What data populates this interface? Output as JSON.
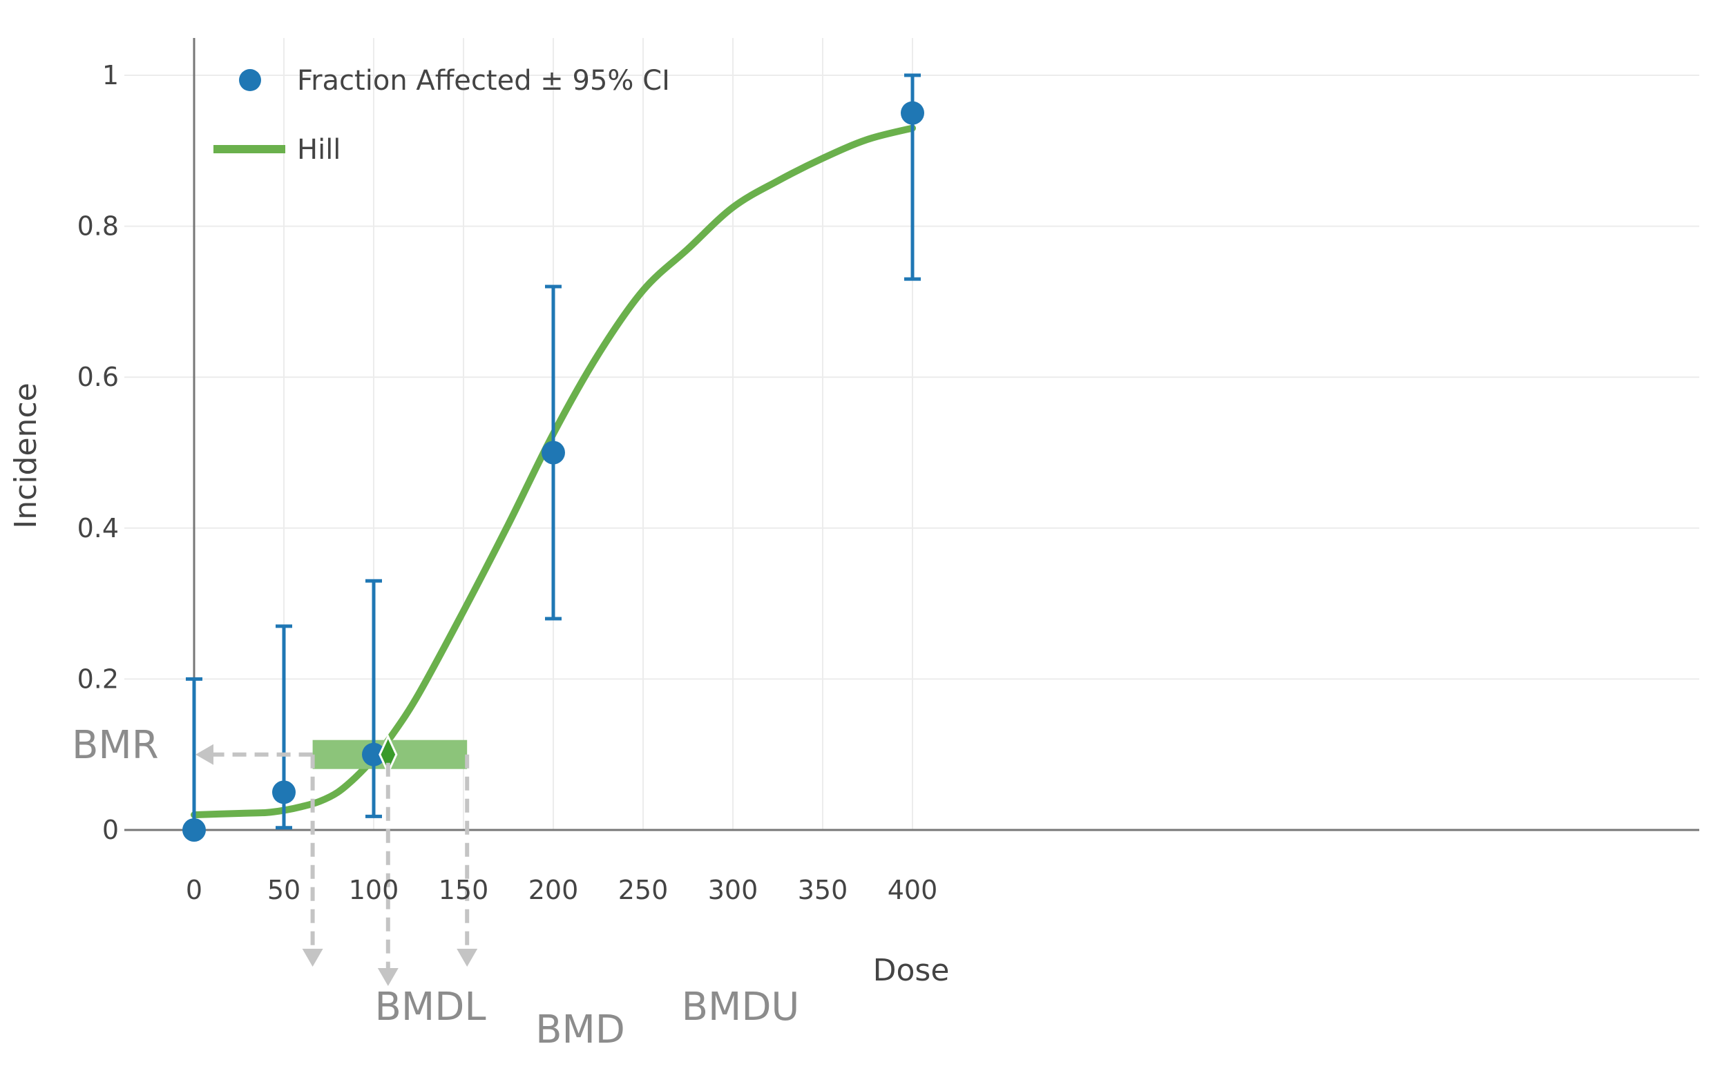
{
  "colors": {
    "points": "#1f77b4",
    "curve": "#6ab04c",
    "bmd_band": "#8cc47a",
    "bmd_marker": "#3a9a2a",
    "annotation": "#c4c4c4",
    "annotation_text": "#8c8c8c",
    "grid": "#ececec",
    "axis": "#777777"
  },
  "chart_data": {
    "type": "scatter",
    "title": "",
    "xlabel": "Dose",
    "ylabel": "Incidence",
    "xlim": [
      0,
      420
    ],
    "ylim": [
      0,
      1.05
    ],
    "x_ticks": [
      0,
      50,
      100,
      150,
      200,
      250,
      300,
      350,
      400
    ],
    "x_tick_labels": [
      "0",
      "50",
      "100",
      "150",
      "200",
      "250",
      "300",
      "350",
      "400"
    ],
    "y_ticks": [
      0,
      0.2,
      0.4,
      0.6,
      0.8,
      1
    ],
    "y_tick_labels": [
      "0",
      "0.2",
      "0.4",
      "0.6",
      "0.8",
      "1"
    ],
    "grid": true,
    "legend_position": "top-left",
    "series": [
      {
        "name": "Fraction Affected ± 95% CI",
        "kind": "points_with_error_bars",
        "x": [
          0,
          50,
          100,
          200,
          400
        ],
        "y": [
          0,
          0.05,
          0.1,
          0.5,
          0.95
        ],
        "ci_low": [
          0,
          0.003,
          0.018,
          0.28,
          0.73
        ],
        "ci_high": [
          0.2,
          0.27,
          0.33,
          0.72,
          1.0
        ]
      },
      {
        "name": "Hill",
        "kind": "line",
        "x": [
          0,
          25,
          40,
          50,
          60,
          70,
          80,
          90,
          100,
          110,
          125,
          150,
          175,
          200,
          225,
          250,
          275,
          300,
          325,
          350,
          375,
          400
        ],
        "y": [
          0.02,
          0.022,
          0.023,
          0.026,
          0.031,
          0.038,
          0.05,
          0.07,
          0.095,
          0.125,
          0.18,
          0.29,
          0.405,
          0.525,
          0.63,
          0.715,
          0.77,
          0.825,
          0.86,
          0.89,
          0.915,
          0.93
        ]
      }
    ],
    "bmd": {
      "bmr": 0.1,
      "bmdl": 66,
      "bmd": 108,
      "bmdu": 152
    },
    "annotations": {
      "bmr": "BMR",
      "bmdl": "BMDL",
      "bmd": "BMD",
      "bmdu": "BMDU"
    }
  }
}
